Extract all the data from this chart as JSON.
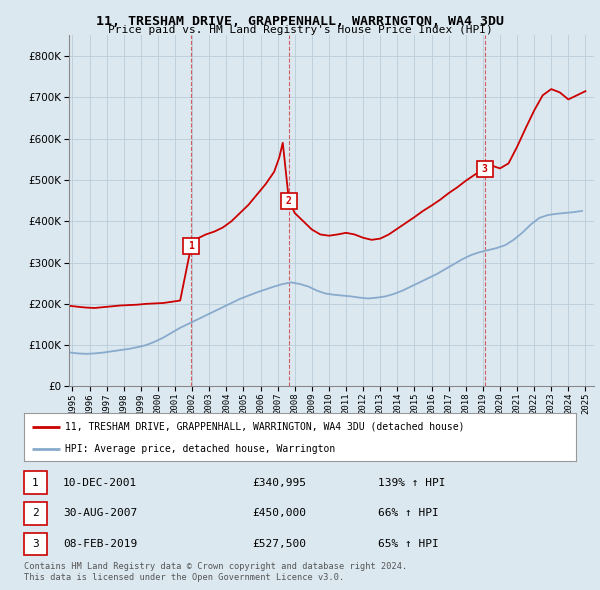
{
  "title": "11, TRESHAM DRIVE, GRAPPENHALL, WARRINGTON, WA4 3DU",
  "subtitle": "Price paid vs. HM Land Registry's House Price Index (HPI)",
  "legend_label_red": "11, TRESHAM DRIVE, GRAPPENHALL, WARRINGTON, WA4 3DU (detached house)",
  "legend_label_blue": "HPI: Average price, detached house, Warrington",
  "footer": "Contains HM Land Registry data © Crown copyright and database right 2024.\nThis data is licensed under the Open Government Licence v3.0.",
  "table_rows": [
    {
      "num": "1",
      "date": "10-DEC-2001",
      "price": "£340,995",
      "pct": "139% ↑ HPI"
    },
    {
      "num": "2",
      "date": "30-AUG-2007",
      "price": "£450,000",
      "pct": "66% ↑ HPI"
    },
    {
      "num": "3",
      "date": "08-FEB-2019",
      "price": "£527,500",
      "pct": "65% ↑ HPI"
    }
  ],
  "sale_points": [
    {
      "year": 2001.95,
      "value": 340995
    },
    {
      "year": 2007.66,
      "value": 450000
    },
    {
      "year": 2019.1,
      "value": 527500
    }
  ],
  "red_color": "#cc0000",
  "blue_color": "#88aacc",
  "background_color": "#dce8f0",
  "plot_bg_color": "#dce8f0",
  "grid_color": "#b8ccd8",
  "ylim": [
    0,
    850000
  ],
  "xlim": [
    1994.8,
    2025.5
  ],
  "yticks": [
    0,
    100000,
    200000,
    300000,
    400000,
    500000,
    600000,
    700000,
    800000
  ],
  "xticks": [
    "1995",
    "1996",
    "1997",
    "1998",
    "1999",
    "2000",
    "2001",
    "2002",
    "2003",
    "2004",
    "2005",
    "2006",
    "2007",
    "2008",
    "2009",
    "2010",
    "2011",
    "2012",
    "2013",
    "2014",
    "2015",
    "2016",
    "2017",
    "2018",
    "2019",
    "2020",
    "2021",
    "2022",
    "2023",
    "2024",
    "2025"
  ],
  "red_line_x": [
    1994.9,
    1995.3,
    1995.8,
    1996.3,
    1996.8,
    1997.3,
    1997.8,
    1998.3,
    1998.8,
    1999.3,
    1999.8,
    2000.3,
    2000.8,
    2001.3,
    2001.95,
    2002.3,
    2002.8,
    2003.3,
    2003.8,
    2004.3,
    2004.8,
    2005.3,
    2005.8,
    2006.3,
    2006.8,
    2007.1,
    2007.3,
    2007.66,
    2008.0,
    2008.5,
    2009.0,
    2009.5,
    2010.0,
    2010.5,
    2011.0,
    2011.5,
    2012.0,
    2012.5,
    2013.0,
    2013.5,
    2014.0,
    2014.5,
    2015.0,
    2015.5,
    2016.0,
    2016.5,
    2017.0,
    2017.5,
    2018.0,
    2018.5,
    2019.1,
    2019.5,
    2020.0,
    2020.5,
    2021.0,
    2021.5,
    2022.0,
    2022.5,
    2023.0,
    2023.5,
    2024.0,
    2024.5,
    2025.0
  ],
  "red_line_y": [
    195000,
    193000,
    191000,
    190000,
    192000,
    194000,
    196000,
    197000,
    198000,
    200000,
    201000,
    202000,
    205000,
    208000,
    340995,
    358000,
    368000,
    375000,
    385000,
    400000,
    420000,
    440000,
    465000,
    490000,
    520000,
    555000,
    590000,
    450000,
    420000,
    400000,
    380000,
    368000,
    365000,
    368000,
    372000,
    368000,
    360000,
    355000,
    358000,
    368000,
    382000,
    396000,
    410000,
    425000,
    438000,
    452000,
    468000,
    482000,
    498000,
    512000,
    527500,
    535000,
    528000,
    540000,
    580000,
    625000,
    668000,
    705000,
    720000,
    712000,
    695000,
    705000,
    715000
  ],
  "blue_line_x": [
    1994.9,
    1995.3,
    1995.8,
    1996.3,
    1996.8,
    1997.3,
    1997.8,
    1998.3,
    1998.8,
    1999.3,
    1999.8,
    2000.3,
    2000.8,
    2001.3,
    2001.8,
    2002.3,
    2002.8,
    2003.3,
    2003.8,
    2004.3,
    2004.8,
    2005.3,
    2005.8,
    2006.3,
    2006.8,
    2007.3,
    2007.8,
    2008.3,
    2008.8,
    2009.3,
    2009.8,
    2010.3,
    2010.8,
    2011.3,
    2011.8,
    2012.3,
    2012.8,
    2013.3,
    2013.8,
    2014.3,
    2014.8,
    2015.3,
    2015.8,
    2016.3,
    2016.8,
    2017.3,
    2017.8,
    2018.3,
    2018.8,
    2019.3,
    2019.8,
    2020.3,
    2020.8,
    2021.3,
    2021.8,
    2022.3,
    2022.8,
    2023.3,
    2023.8,
    2024.3,
    2024.8
  ],
  "blue_line_y": [
    82000,
    80000,
    79000,
    80000,
    82000,
    85000,
    88000,
    91000,
    95000,
    100000,
    108000,
    118000,
    130000,
    142000,
    152000,
    162000,
    172000,
    182000,
    192000,
    202000,
    212000,
    220000,
    228000,
    235000,
    242000,
    248000,
    252000,
    248000,
    242000,
    232000,
    225000,
    222000,
    220000,
    218000,
    215000,
    213000,
    215000,
    218000,
    224000,
    232000,
    242000,
    252000,
    262000,
    272000,
    284000,
    296000,
    308000,
    318000,
    325000,
    330000,
    335000,
    342000,
    355000,
    372000,
    392000,
    408000,
    415000,
    418000,
    420000,
    422000,
    425000
  ]
}
